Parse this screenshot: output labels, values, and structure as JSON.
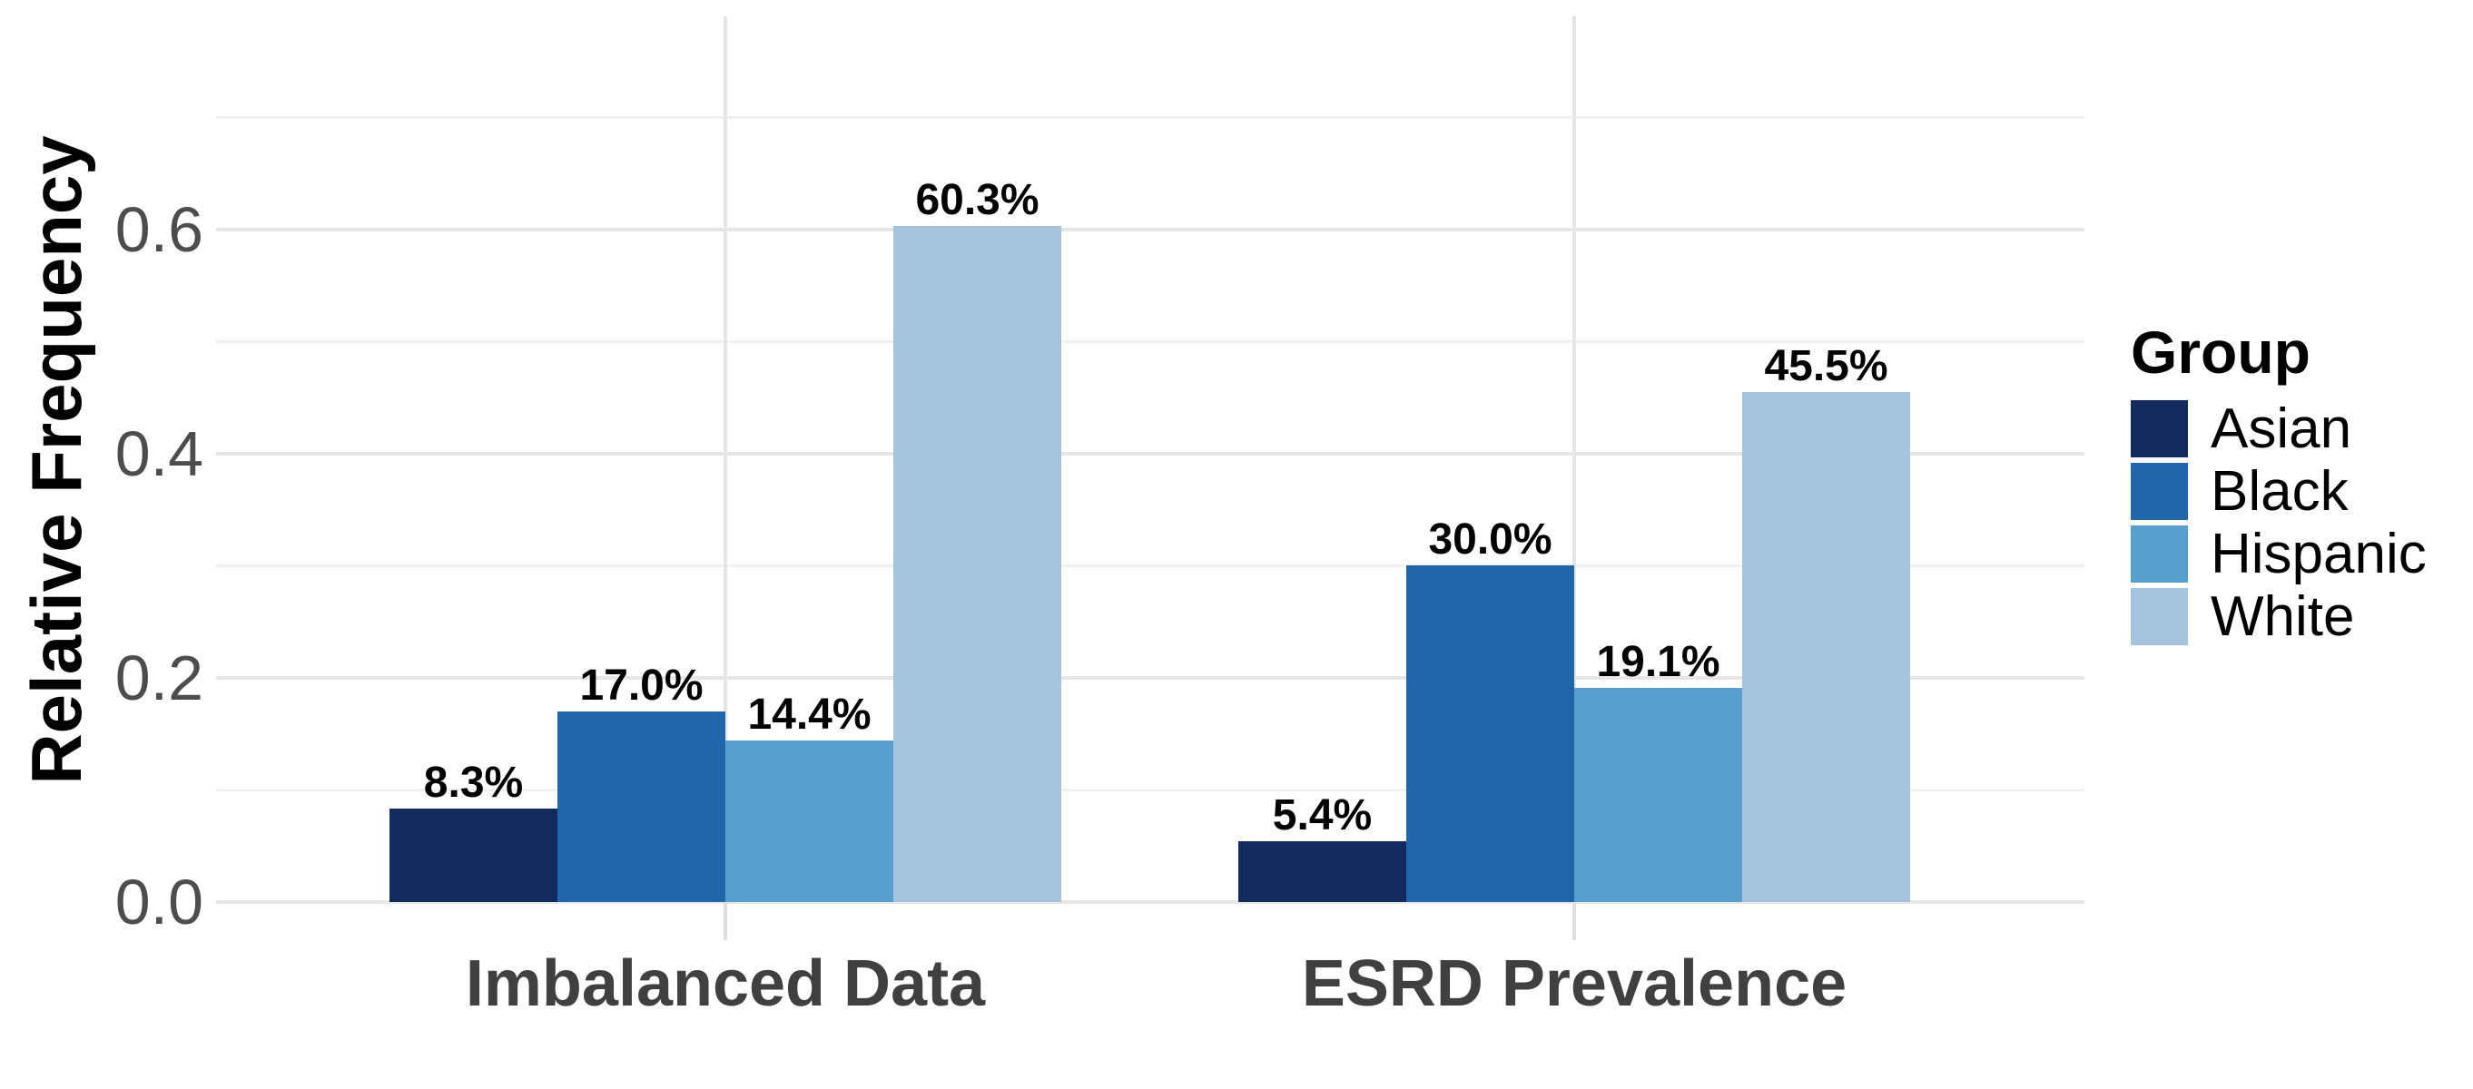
{
  "chart_data": {
    "type": "bar",
    "title": "",
    "xlabel": "",
    "ylabel": "Relative Frequency",
    "categories": [
      "Imbalanced Data",
      "ESRD Prevalence"
    ],
    "series": [
      {
        "name": "Asian",
        "color": "#122a5c",
        "values": [
          0.083,
          0.054
        ],
        "value_labels": [
          "8.3%",
          "5.4%"
        ]
      },
      {
        "name": "Black",
        "color": "#2066a8",
        "values": [
          0.17,
          0.3
        ],
        "value_labels": [
          "17.0%",
          "30.0%"
        ]
      },
      {
        "name": "Hispanic",
        "color": "#589fcd",
        "values": [
          0.144,
          0.191
        ],
        "value_labels": [
          "14.4%",
          "19.1%"
        ]
      },
      {
        "name": "White",
        "color": "#a6c3dd",
        "values": [
          0.603,
          0.455
        ],
        "value_labels": [
          "60.3%",
          "45.5%"
        ]
      }
    ],
    "ylim": [
      0,
      0.79
    ],
    "yticks_major": [
      0.0,
      0.2,
      0.4,
      0.6
    ],
    "ytick_labels": [
      "0.0",
      "0.2",
      "0.4",
      "0.6"
    ],
    "yticks_minor": [
      0.1,
      0.3,
      0.5,
      0.7
    ],
    "grid": true,
    "legend": {
      "title": "Group",
      "position": "right",
      "entries": [
        "Asian",
        "Black",
        "Hispanic",
        "White"
      ]
    },
    "style": {
      "grid_major_color": "#e6e6e6",
      "grid_minor_color": "#f0f0f0",
      "tick_mark_color": "#dedede",
      "axis_text_color": "#4d4d4d",
      "cat_label_color": "#404040",
      "value_label_color": "#000000",
      "background": "#ffffff"
    }
  }
}
